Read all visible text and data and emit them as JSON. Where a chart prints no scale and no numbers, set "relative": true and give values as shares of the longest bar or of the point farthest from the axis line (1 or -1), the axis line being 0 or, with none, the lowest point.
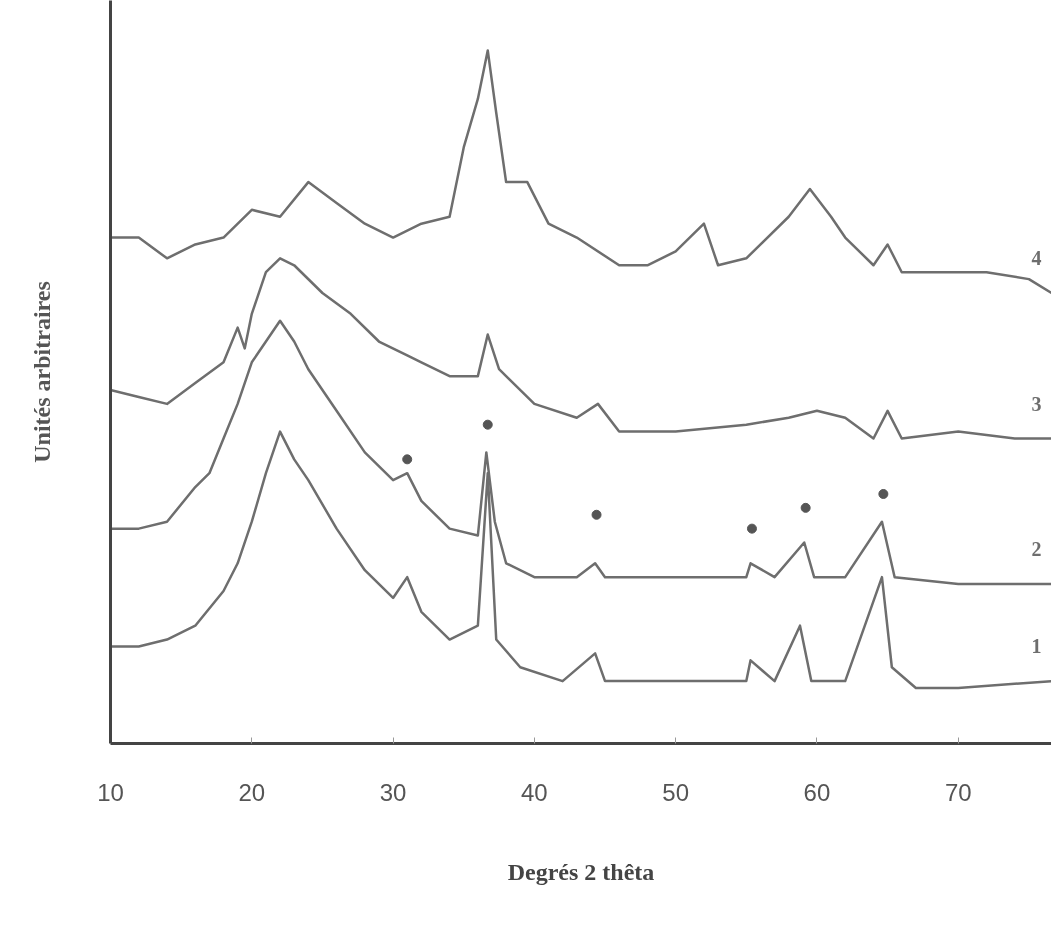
{
  "chart_data": {
    "type": "line",
    "relative": true,
    "xlabel": "Degrés 2 thêta",
    "ylabel": "Unités arbitraires",
    "xlim": [
      10,
      76.6
    ],
    "xticks": [
      10,
      20,
      30,
      40,
      50,
      60,
      70
    ],
    "grid": false,
    "marker": "none",
    "line_style": "solid",
    "series": [
      {
        "name": "1",
        "color": "#6e6e6e",
        "x": [
          10,
          12,
          14,
          16,
          18,
          19,
          20,
          21,
          22,
          23,
          24,
          26,
          28,
          30,
          31,
          32,
          34,
          36,
          36.7,
          37.3,
          39,
          42,
          44.3,
          45,
          50,
          55,
          55.3,
          57,
          58.8,
          59.6,
          62,
          64.6,
          65.3,
          67,
          70,
          76.6
        ],
        "values": [
          0.14,
          0.14,
          0.15,
          0.17,
          0.22,
          0.26,
          0.32,
          0.39,
          0.45,
          0.41,
          0.38,
          0.31,
          0.25,
          0.21,
          0.24,
          0.19,
          0.15,
          0.17,
          0.39,
          0.15,
          0.11,
          0.09,
          0.13,
          0.09,
          0.09,
          0.09,
          0.12,
          0.09,
          0.17,
          0.09,
          0.09,
          0.24,
          0.11,
          0.08,
          0.08,
          0.09
        ]
      },
      {
        "name": "2",
        "color": "#6e6e6e",
        "x": [
          10,
          12,
          14,
          16,
          17,
          18,
          19,
          20,
          21,
          22,
          23,
          24,
          26,
          28,
          30,
          31,
          32,
          34,
          36,
          36.6,
          37.2,
          38,
          40,
          43,
          44.3,
          45,
          50,
          55,
          55.3,
          57,
          59.1,
          59.8,
          62,
          64.6,
          65.5,
          70,
          76.6
        ],
        "values": [
          0.31,
          0.31,
          0.32,
          0.37,
          0.39,
          0.44,
          0.49,
          0.55,
          0.58,
          0.61,
          0.58,
          0.54,
          0.48,
          0.42,
          0.38,
          0.39,
          0.35,
          0.31,
          0.3,
          0.42,
          0.32,
          0.26,
          0.24,
          0.24,
          0.26,
          0.24,
          0.24,
          0.24,
          0.26,
          0.24,
          0.29,
          0.24,
          0.24,
          0.32,
          0.24,
          0.23,
          0.23
        ]
      },
      {
        "name": "3",
        "color": "#6e6e6e",
        "x": [
          10,
          12,
          14,
          16,
          18,
          19,
          19.5,
          20,
          21,
          22,
          23,
          25,
          27,
          29,
          31,
          32,
          34,
          36,
          36.7,
          37.5,
          40,
          43,
          44.5,
          46,
          50,
          55,
          58,
          60,
          62,
          64,
          65,
          66,
          70,
          74,
          76.6
        ],
        "values": [
          0.51,
          0.5,
          0.49,
          0.52,
          0.55,
          0.6,
          0.57,
          0.62,
          0.68,
          0.7,
          0.69,
          0.65,
          0.62,
          0.58,
          0.56,
          0.55,
          0.53,
          0.53,
          0.59,
          0.54,
          0.49,
          0.47,
          0.49,
          0.45,
          0.45,
          0.46,
          0.47,
          0.48,
          0.47,
          0.44,
          0.48,
          0.44,
          0.45,
          0.44,
          0.44
        ]
      },
      {
        "name": "4",
        "color": "#6e6e6e",
        "x": [
          10,
          12,
          14,
          16,
          18,
          20,
          22,
          24,
          26,
          28,
          30,
          32,
          34,
          35,
          36,
          36.7,
          37.3,
          38,
          39.5,
          41,
          43,
          46,
          48,
          50,
          52,
          53,
          55,
          58,
          59.5,
          61,
          62,
          64,
          65,
          66,
          70,
          72,
          75,
          76.6
        ],
        "values": [
          0.73,
          0.73,
          0.7,
          0.72,
          0.73,
          0.77,
          0.76,
          0.81,
          0.78,
          0.75,
          0.73,
          0.75,
          0.76,
          0.86,
          0.93,
          1.0,
          0.91,
          0.81,
          0.81,
          0.75,
          0.73,
          0.69,
          0.69,
          0.71,
          0.75,
          0.69,
          0.7,
          0.76,
          0.8,
          0.76,
          0.73,
          0.69,
          0.72,
          0.68,
          0.68,
          0.68,
          0.67,
          0.65
        ]
      },
      {
        "type": "scatter",
        "marker": "circle",
        "color": "#555555",
        "x": [
          31,
          36.7,
          44.4,
          55.4,
          59.2,
          64.7
        ],
        "values": [
          0.41,
          0.46,
          0.33,
          0.31,
          0.34,
          0.36
        ]
      }
    ]
  }
}
